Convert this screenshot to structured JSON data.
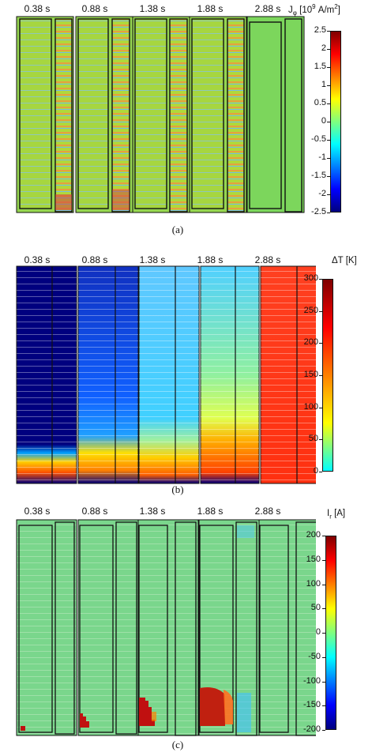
{
  "times": [
    "0.38 s",
    "0.88 s",
    "1.38 s",
    "1.88 s",
    "2.88 s"
  ],
  "panels": [
    {
      "caption": "(a)",
      "colorbar_title": "J",
      "colorbar_sub": "φ",
      "colorbar_unit": " [10",
      "colorbar_exp": "9",
      "colorbar_unit2": " A/m",
      "colorbar_exp2": "2",
      "colorbar_unit3": "]",
      "ticks": [
        "2.5",
        "2",
        "1.5",
        "1",
        "0.5",
        "0",
        "-0.5",
        "-1",
        "-1.5",
        "-2",
        "-2.5"
      ]
    },
    {
      "caption": "(b)",
      "colorbar_title": "ΔT [K]",
      "ticks": [
        "300",
        "250",
        "200",
        "150",
        "100",
        "50",
        "0"
      ]
    },
    {
      "caption": "(c)",
      "colorbar_title": "I",
      "colorbar_sub": "r",
      "colorbar_unit": " [A]",
      "ticks": [
        "200",
        "150",
        "100",
        "50",
        "0",
        "-50",
        "-100",
        "-150",
        "-200"
      ]
    }
  ],
  "colors": {
    "jet_low": "#00007f",
    "jet_mid": "#7fff7f",
    "jet_high": "#7f0000",
    "background_green": "#7cd65c"
  }
}
